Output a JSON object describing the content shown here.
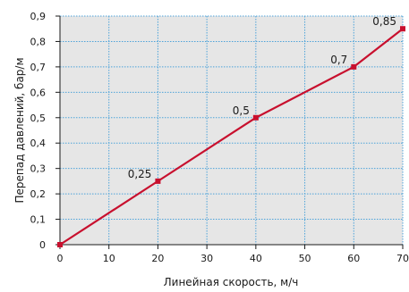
{
  "chart_data": {
    "type": "line",
    "xlabel": "Линейная скорость, м/ч",
    "ylabel": "Перепад давлений, бар/м",
    "xlim": [
      0,
      70
    ],
    "ylim": [
      0,
      0.9
    ],
    "x_ticks": [
      0,
      10,
      20,
      30,
      40,
      50,
      60,
      70
    ],
    "y_ticks": [
      0,
      0.1,
      0.2,
      0.3,
      0.4,
      0.5,
      0.6,
      0.7,
      0.8,
      0.9
    ],
    "x_tick_labels": [
      "0",
      "10",
      "20",
      "30",
      "40",
      "50",
      "60",
      "70"
    ],
    "y_tick_labels": [
      "0",
      "0,1",
      "0,2",
      "0,3",
      "0,4",
      "0,5",
      "0,6",
      "0,7",
      "0,8",
      "0,9"
    ],
    "grid": true,
    "series": [
      {
        "x": [
          0,
          20,
          40,
          60,
          70
        ],
        "y": [
          0,
          0.25,
          0.5,
          0.7,
          0.85
        ],
        "color": "#c8102e"
      }
    ],
    "data_labels": [
      {
        "x": 20,
        "y": 0.25,
        "text": "0,25"
      },
      {
        "x": 40,
        "y": 0.5,
        "text": "0,5"
      },
      {
        "x": 60,
        "y": 0.7,
        "text": "0,7"
      },
      {
        "x": 70,
        "y": 0.85,
        "text": "0,85"
      }
    ],
    "plot_background": "#e6e6e6",
    "grid_color": "#4da3d9",
    "axis_color": "#1a1a1a"
  }
}
